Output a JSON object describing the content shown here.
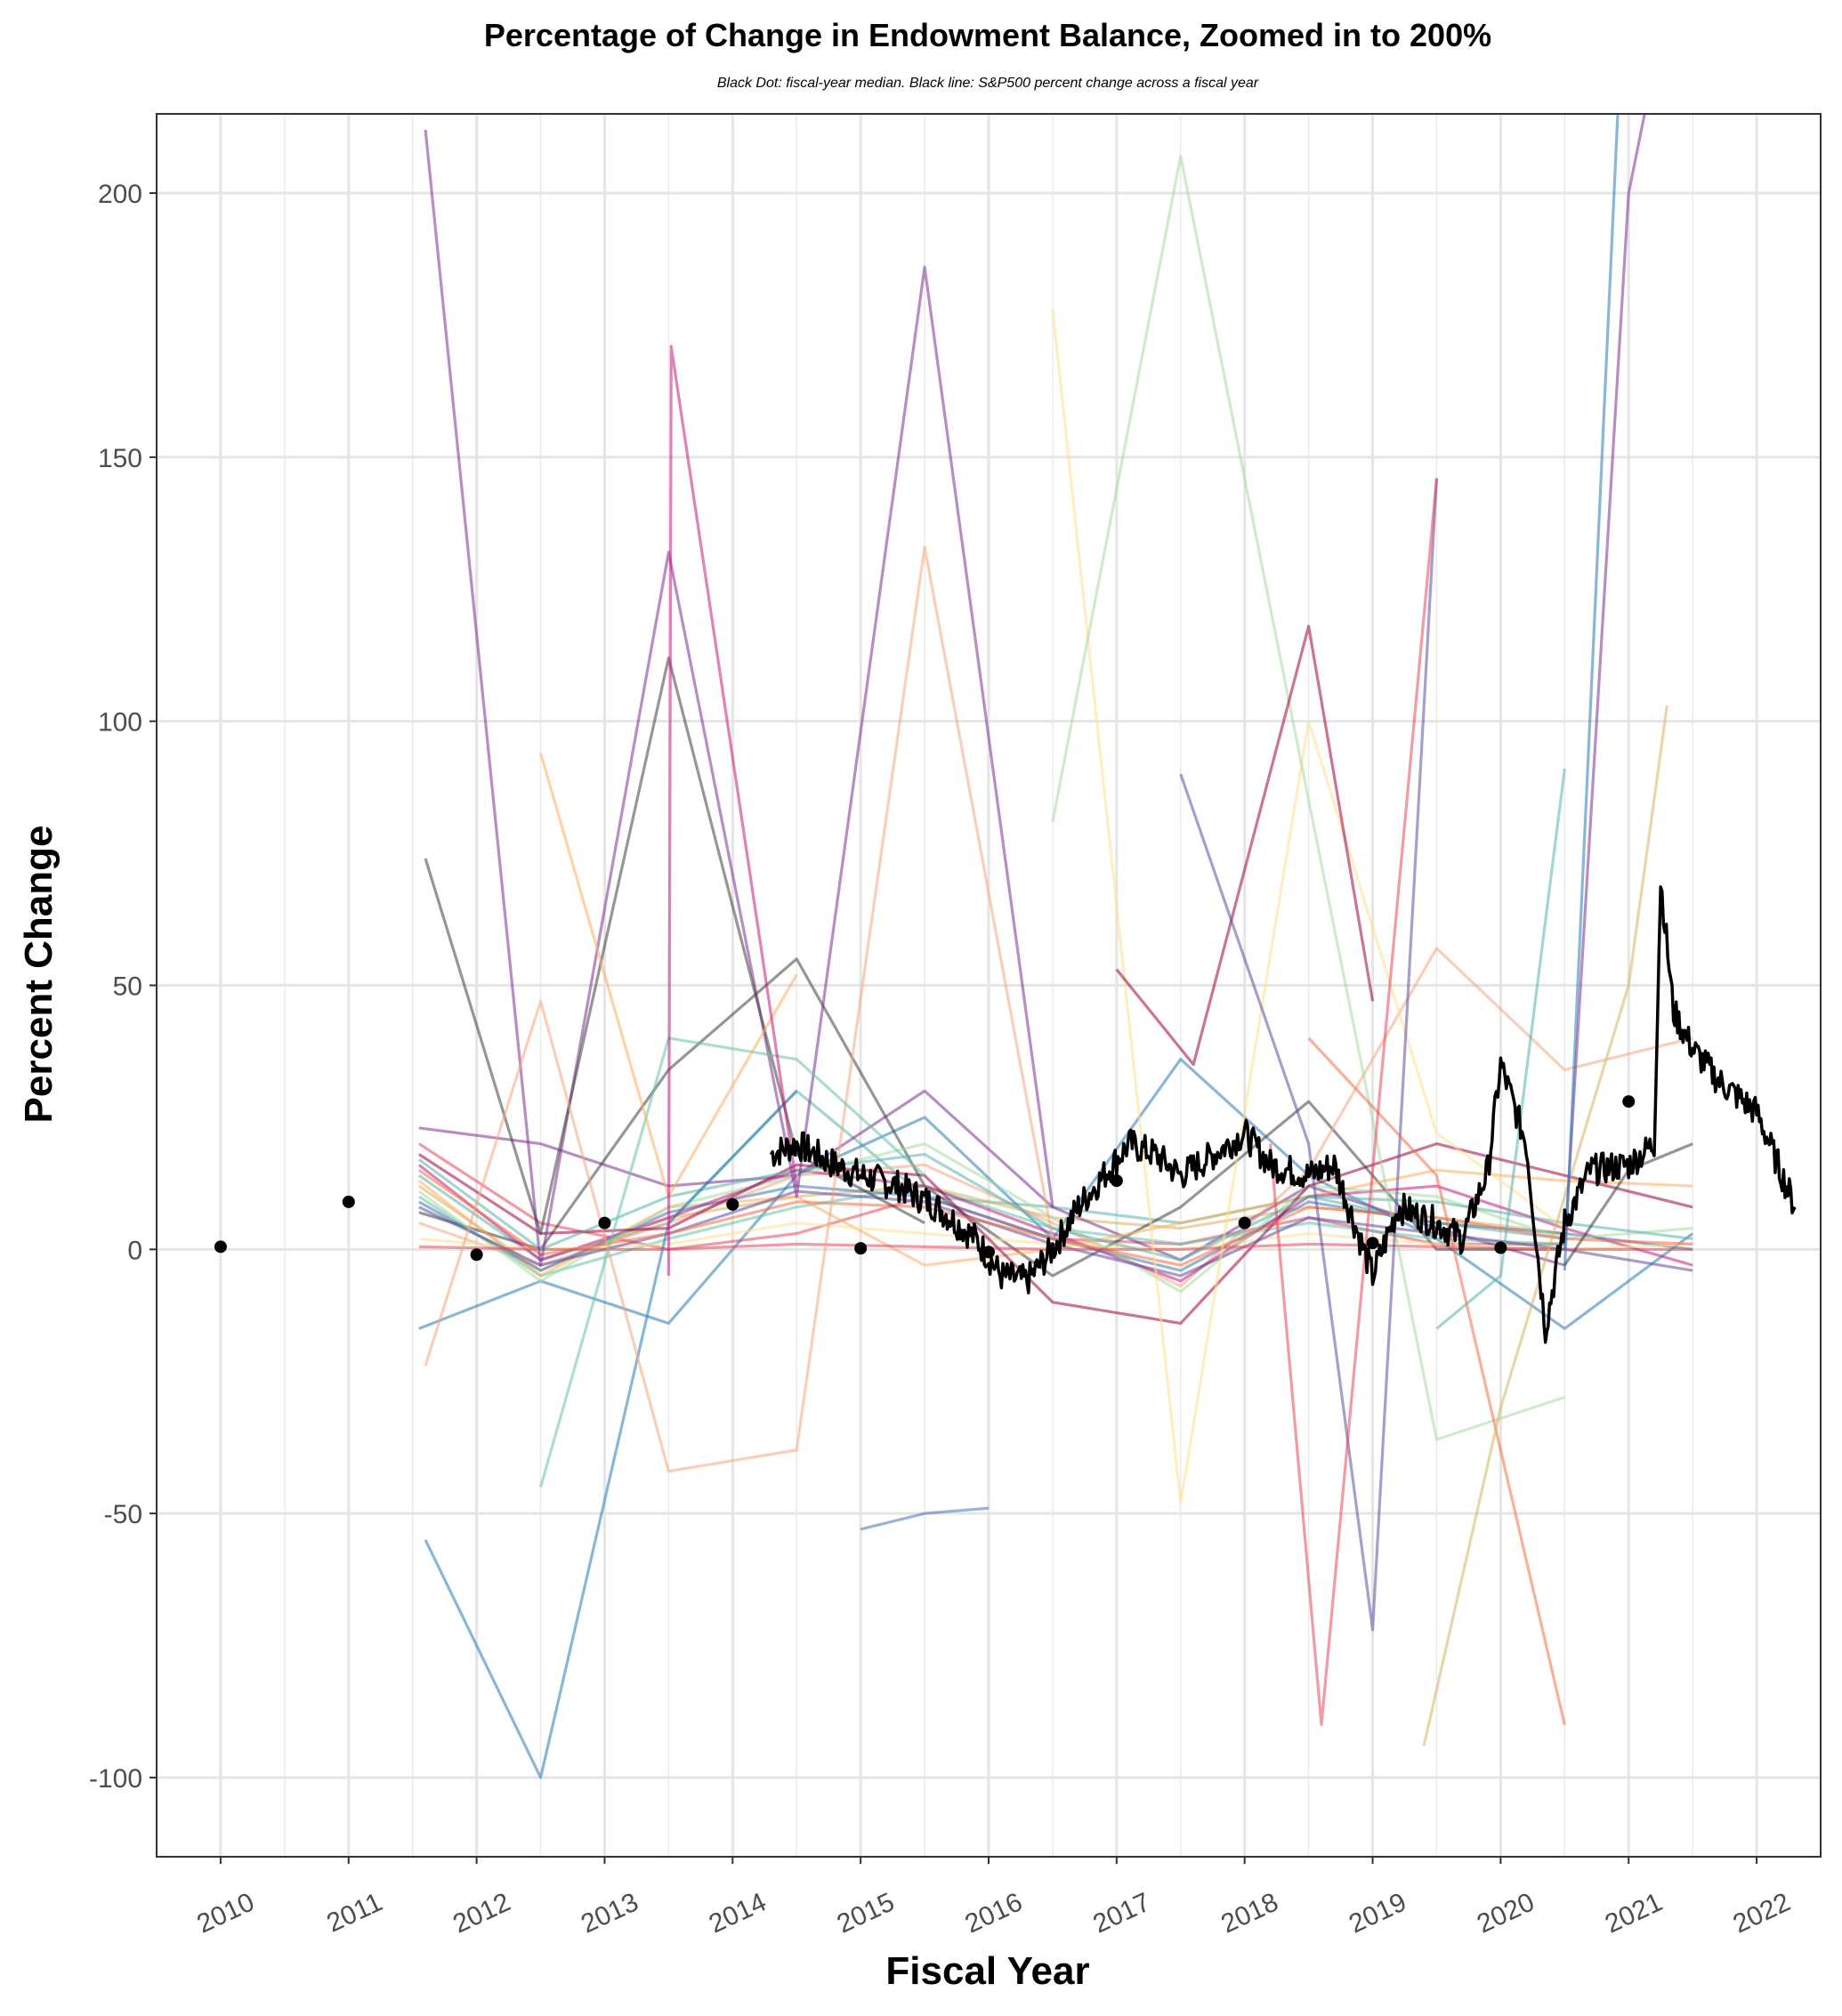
{
  "chart_data": {
    "type": "line",
    "title": "Percentage of Change in Endowment Balance, Zoomed in to 200%",
    "subtitle": "Black Dot: fiscal-year median. Black line: S&P500 percent change across a fiscal year",
    "xlabel": "Fiscal Year",
    "ylabel": "Percent Change",
    "xlim": [
      2009.5,
      2022.5
    ],
    "ylim": [
      -115,
      215
    ],
    "x_ticks": [
      "2010",
      "2011",
      "2012",
      "2013",
      "2014",
      "2015",
      "2016",
      "2017",
      "2018",
      "2019",
      "2020",
      "2021",
      "2022"
    ],
    "y_ticks": [
      "-100",
      "-50",
      "0",
      "50",
      "100",
      "150",
      "200"
    ],
    "grid": true,
    "median_points": {
      "x": [
        2010,
        2011,
        2012,
        2013,
        2014,
        2015,
        2016,
        2017,
        2018,
        2019,
        2020,
        2021
      ],
      "y": [
        0.5,
        9,
        -1,
        5,
        8.5,
        0.2,
        -0.5,
        13,
        5,
        1.2,
        0.3,
        28
      ]
    },
    "sp500_anchors": {
      "x": [
        2014.3,
        2014.5,
        2014.8,
        2015.0,
        2015.3,
        2015.6,
        2015.9,
        2016.1,
        2016.3,
        2016.5,
        2016.7,
        2016.9,
        2017.1,
        2017.3,
        2017.5,
        2017.7,
        2018.0,
        2018.2,
        2018.5,
        2018.7,
        2019.0,
        2019.2,
        2019.5,
        2019.7,
        2019.9,
        2020.0,
        2020.2,
        2020.35,
        2020.5,
        2020.7,
        2021.0,
        2021.2,
        2021.25,
        2021.35,
        2021.5,
        2021.7,
        2022.0,
        2022.2,
        2022.3
      ],
      "y": [
        18,
        20,
        16,
        14,
        12,
        8,
        2,
        -5,
        -6,
        0,
        8,
        14,
        20,
        18,
        14,
        17,
        22,
        16,
        14,
        16,
        -5,
        8,
        5,
        2,
        15,
        35,
        20,
        -15,
        5,
        15,
        16,
        20,
        70,
        45,
        38,
        32,
        26,
        14,
        8
      ]
    },
    "series_colors": [
      "#e3485d",
      "#5ab4ac",
      "#d8b365",
      "#7b3294",
      "#2c7bb6",
      "#404040",
      "#f4a582",
      "#66c2a5",
      "#fdae61",
      "#c51b7d",
      "#4575b4",
      "#fee090",
      "#a6dba0",
      "#9e0142",
      "#5e4fa2",
      "#f46d43"
    ],
    "series": [
      {
        "values": [
          20,
          5,
          0,
          3,
          10,
          2,
          1,
          6,
          1,
          1
        ]
      },
      {
        "values": [
          14,
          -2,
          5,
          30,
          10,
          8,
          5,
          10,
          5,
          2
        ]
      },
      {
        "values": [
          12,
          -4,
          6,
          10,
          12,
          6,
          4,
          8,
          6,
          3
        ]
      },
      {
        "values": [
          23,
          20,
          12,
          14,
          30,
          8,
          -2,
          12,
          4,
          -3
        ]
      },
      {
        "values": [
          -15,
          -6,
          -14,
          14,
          25,
          2,
          36,
          14,
          2,
          -15,
          3
        ]
      },
      {
        "values": [
          7,
          0,
          34,
          55,
          12,
          -5,
          8,
          28,
          0,
          0
        ]
      },
      {
        "values": [
          5,
          -3,
          5,
          14,
          16,
          5,
          -7,
          15,
          57,
          34,
          40
        ]
      },
      {
        "values": [
          10,
          -5,
          2,
          8,
          12,
          4,
          1,
          5,
          2,
          1
        ]
      },
      {
        "values": [
          13,
          -5,
          8,
          10,
          -3,
          0,
          5,
          10,
          15,
          13,
          12
        ]
      },
      {
        "values": [
          16,
          -2,
          6,
          15,
          12,
          3,
          -6,
          10,
          12,
          4,
          -3
        ]
      },
      {
        "values": [
          9,
          -4,
          7,
          12,
          10,
          2,
          -4,
          9,
          5,
          3,
          0
        ]
      },
      {
        "values": [
          2,
          0,
          1,
          5,
          3,
          1,
          0,
          3,
          1,
          0,
          1
        ]
      },
      {
        "values": [
          11,
          -6,
          8,
          14,
          20,
          6,
          -8,
          12,
          10,
          2,
          4
        ]
      },
      {
        "values": [
          18,
          3,
          4,
          16,
          14,
          -10,
          -14,
          12,
          20,
          14,
          8
        ]
      },
      {
        "values": [
          8,
          -3,
          3,
          11,
          9,
          1,
          -5,
          6,
          3,
          0,
          -4
        ]
      },
      {
        "values": [
          15,
          -1,
          3,
          9,
          8,
          2,
          -3,
          8,
          6,
          2,
          1
        ]
      },
      {
        "values": [
          0.5,
          0,
          0,
          1,
          0.5,
          0,
          0,
          1,
          0.5,
          0,
          0
        ]
      },
      {
        "values": [
          17,
          0,
          10,
          15,
          18,
          4,
          -2,
          10,
          9,
          5,
          2
        ]
      }
    ],
    "spike_series": [
      {
        "x": [
          2011.6,
          2012.5,
          2013.5,
          2014.5,
          2015.5,
          2016.5
        ],
        "values": [
          212,
          -3,
          132,
          10,
          186,
          8
        ]
      },
      {
        "x": [
          2011.6,
          2012.5,
          2013.5,
          2014.5
        ],
        "values": [
          -55,
          -100,
          5,
          30
        ]
      },
      {
        "x": [
          2011.6,
          2012.5,
          2013.5,
          2014.5,
          2015.5
        ],
        "values": [
          74,
          3,
          112,
          18,
          5
        ]
      },
      {
        "x": [
          2011.6,
          2012.5,
          2013.5,
          2014.5,
          2015.5,
          2016.5
        ],
        "values": [
          -22,
          47,
          -42,
          -38,
          133,
          2
        ]
      },
      {
        "x": [
          2012.5,
          2013.5,
          2014.5,
          2015.5
        ],
        "values": [
          -45,
          40,
          36,
          14
        ]
      },
      {
        "x": [
          2012.5,
          2013.5,
          2014.5
        ],
        "values": [
          94,
          10,
          52
        ]
      },
      {
        "x": [
          2013.5,
          2013.52,
          2014.5
        ],
        "values": [
          -5,
          171,
          12
        ]
      },
      {
        "x": [
          2015.0,
          2015.5,
          2016.0
        ],
        "values": [
          -53,
          -50,
          -49
        ]
      },
      {
        "x": [
          2016.5,
          2017.5,
          2018.5,
          2019.5,
          2020.5
        ],
        "values": [
          178,
          -48,
          100,
          22,
          4
        ]
      },
      {
        "x": [
          2016.5,
          2017.5,
          2018.5,
          2019.5,
          2020.5
        ],
        "values": [
          81,
          207,
          85,
          -36,
          -28
        ]
      },
      {
        "x": [
          2017.0,
          2017.6,
          2018.5,
          2019.0
        ],
        "values": [
          53,
          35,
          118,
          47
        ]
      },
      {
        "x": [
          2017.5,
          2018.5,
          2019.0,
          2019.5
        ],
        "values": [
          90,
          20,
          -72,
          146
        ]
      },
      {
        "x": [
          2018.5,
          2019.5,
          2020.5
        ],
        "values": [
          40,
          14,
          -90
        ]
      },
      {
        "x": [
          2018.2,
          2018.6,
          2019.5
        ],
        "values": [
          20,
          -90,
          146
        ]
      },
      {
        "x": [
          2019.5,
          2020.0,
          2020.5
        ],
        "values": [
          -15,
          -5,
          91
        ]
      },
      {
        "x": [
          2019.4,
          2020.0,
          2021.0,
          2021.3
        ],
        "values": [
          -94,
          -30,
          50,
          103
        ]
      },
      {
        "x": [
          2020.5,
          2021.0,
          2021.5
        ],
        "values": [
          0,
          200,
          260
        ]
      },
      {
        "x": [
          2020.5,
          2021.0
        ],
        "values": [
          -4,
          260
        ]
      },
      {
        "x": [
          2020.5,
          2021.0,
          2021.5
        ],
        "values": [
          -3,
          15,
          20
        ]
      }
    ]
  }
}
